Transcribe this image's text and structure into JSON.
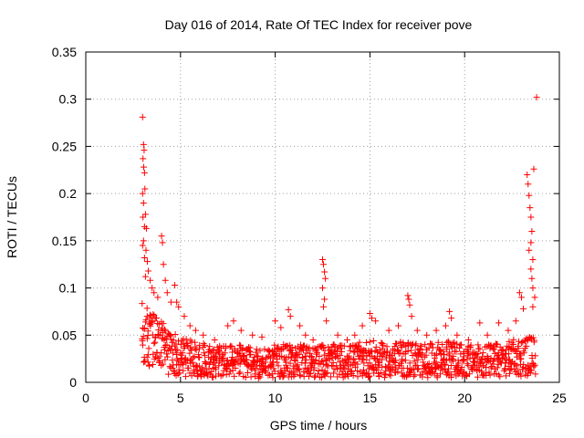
{
  "chart_data": {
    "type": "scatter",
    "title": "Day 016 of 2014, Rate Of TEC Index for receiver pove",
    "xlabel": "GPS time / hours",
    "ylabel": "ROTI / TECUs",
    "xlim": [
      0,
      25
    ],
    "ylim": [
      0,
      0.35
    ],
    "x_ticks": [
      0,
      5,
      10,
      15,
      20,
      25
    ],
    "y_ticks": [
      0,
      0.05,
      0.1,
      0.15,
      0.2,
      0.25,
      0.3,
      0.35
    ],
    "x_tick_labels": [
      "0",
      "5",
      "10",
      "15",
      "20",
      "25"
    ],
    "y_tick_labels": [
      "0",
      "0.05",
      "0.1",
      "0.15",
      "0.2",
      "0.25",
      "0.3",
      "0.35"
    ],
    "grid": true,
    "marker": "+",
    "marker_color": "#ff0000",
    "series": [
      {
        "name": "ROTI",
        "points": [
          [
            3.0,
            0.281
          ],
          [
            3.05,
            0.252
          ],
          [
            3.08,
            0.246
          ],
          [
            3.02,
            0.237
          ],
          [
            3.06,
            0.228
          ],
          [
            3.1,
            0.222
          ],
          [
            3.0,
            0.2
          ],
          [
            3.12,
            0.205
          ],
          [
            3.05,
            0.19
          ],
          [
            3.15,
            0.178
          ],
          [
            3.02,
            0.175
          ],
          [
            3.1,
            0.165
          ],
          [
            3.2,
            0.163
          ],
          [
            3.05,
            0.15
          ],
          [
            3.0,
            0.145
          ],
          [
            3.18,
            0.14
          ],
          [
            3.1,
            0.132
          ],
          [
            3.25,
            0.128
          ],
          [
            3.3,
            0.118
          ],
          [
            3.15,
            0.112
          ],
          [
            3.4,
            0.108
          ],
          [
            3.5,
            0.1
          ],
          [
            3.6,
            0.095
          ],
          [
            3.8,
            0.09
          ],
          [
            4.0,
            0.155
          ],
          [
            4.05,
            0.148
          ],
          [
            4.1,
            0.125
          ],
          [
            4.2,
            0.108
          ],
          [
            4.3,
            0.095
          ],
          [
            4.5,
            0.085
          ],
          [
            4.7,
            0.103
          ],
          [
            4.8,
            0.085
          ],
          [
            4.9,
            0.08
          ],
          [
            5.2,
            0.07
          ],
          [
            5.5,
            0.06
          ],
          [
            5.8,
            0.055
          ],
          [
            6.2,
            0.05
          ],
          [
            6.8,
            0.045
          ],
          [
            7.5,
            0.06
          ],
          [
            7.8,
            0.065
          ],
          [
            8.2,
            0.055
          ],
          [
            8.8,
            0.05
          ],
          [
            9.3,
            0.048
          ],
          [
            10.0,
            0.065
          ],
          [
            10.3,
            0.058
          ],
          [
            10.7,
            0.077
          ],
          [
            10.8,
            0.07
          ],
          [
            11.3,
            0.06
          ],
          [
            11.6,
            0.05
          ],
          [
            12.0,
            0.045
          ],
          [
            12.5,
            0.13
          ],
          [
            12.55,
            0.125
          ],
          [
            12.6,
            0.117
          ],
          [
            12.65,
            0.11
          ],
          [
            12.5,
            0.1
          ],
          [
            12.6,
            0.088
          ],
          [
            12.55,
            0.08
          ],
          [
            12.7,
            0.065
          ],
          [
            13.3,
            0.05
          ],
          [
            13.8,
            0.045
          ],
          [
            14.2,
            0.05
          ],
          [
            14.6,
            0.06
          ],
          [
            15.0,
            0.073
          ],
          [
            15.1,
            0.068
          ],
          [
            15.3,
            0.065
          ],
          [
            16.0,
            0.055
          ],
          [
            16.5,
            0.06
          ],
          [
            17.0,
            0.092
          ],
          [
            17.05,
            0.088
          ],
          [
            17.1,
            0.082
          ],
          [
            17.2,
            0.07
          ],
          [
            17.5,
            0.055
          ],
          [
            18.0,
            0.05
          ],
          [
            18.5,
            0.055
          ],
          [
            19.0,
            0.06
          ],
          [
            19.2,
            0.075
          ],
          [
            19.3,
            0.068
          ],
          [
            19.6,
            0.05
          ],
          [
            20.2,
            0.045
          ],
          [
            20.8,
            0.063
          ],
          [
            21.2,
            0.05
          ],
          [
            21.8,
            0.063
          ],
          [
            22.3,
            0.055
          ],
          [
            22.7,
            0.065
          ],
          [
            22.9,
            0.095
          ],
          [
            23.0,
            0.09
          ],
          [
            23.1,
            0.078
          ],
          [
            23.3,
            0.22
          ],
          [
            23.35,
            0.21
          ],
          [
            23.4,
            0.198
          ],
          [
            23.45,
            0.185
          ],
          [
            23.5,
            0.175
          ],
          [
            23.55,
            0.16
          ],
          [
            23.5,
            0.148
          ],
          [
            23.4,
            0.14
          ],
          [
            23.6,
            0.13
          ],
          [
            23.5,
            0.12
          ],
          [
            23.55,
            0.11
          ],
          [
            23.6,
            0.1
          ],
          [
            23.65,
            0.226
          ],
          [
            23.8,
            0.302
          ],
          [
            23.7,
            0.09
          ],
          [
            23.6,
            0.08
          ]
        ],
        "band": [
          [
            3.0,
            0.012,
            0.085
          ],
          [
            3.5,
            0.012,
            0.075
          ],
          [
            4.0,
            0.01,
            0.065
          ],
          [
            4.5,
            0.008,
            0.055
          ],
          [
            5.0,
            0.006,
            0.048
          ],
          [
            6.0,
            0.006,
            0.042
          ],
          [
            7.0,
            0.005,
            0.04
          ],
          [
            8.0,
            0.005,
            0.04
          ],
          [
            9.0,
            0.004,
            0.036
          ],
          [
            10.0,
            0.005,
            0.04
          ],
          [
            11.0,
            0.005,
            0.04
          ],
          [
            12.0,
            0.005,
            0.04
          ],
          [
            13.0,
            0.005,
            0.04
          ],
          [
            14.0,
            0.005,
            0.04
          ],
          [
            15.0,
            0.005,
            0.045
          ],
          [
            16.0,
            0.005,
            0.04
          ],
          [
            17.0,
            0.005,
            0.045
          ],
          [
            18.0,
            0.005,
            0.04
          ],
          [
            19.0,
            0.005,
            0.045
          ],
          [
            20.0,
            0.005,
            0.04
          ],
          [
            21.0,
            0.005,
            0.04
          ],
          [
            22.0,
            0.006,
            0.042
          ],
          [
            23.0,
            0.006,
            0.048
          ],
          [
            23.8,
            0.008,
            0.05
          ]
        ],
        "band_density": 6
      }
    ]
  }
}
